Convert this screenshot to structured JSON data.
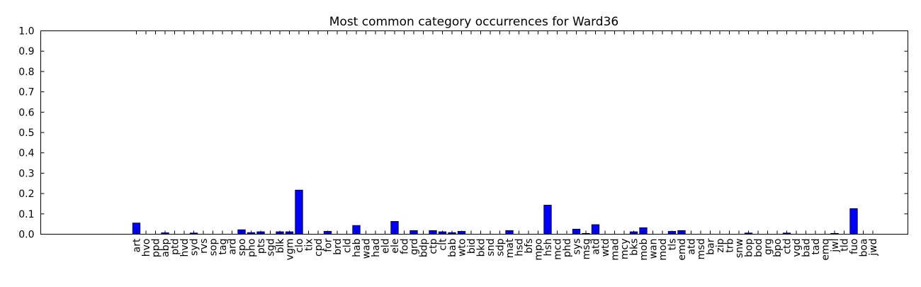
{
  "chart_data": {
    "type": "bar",
    "title": "Most common category occurrences for Ward36",
    "xlabel": "",
    "ylabel": "",
    "ylim": [
      0,
      1.0
    ],
    "yticks": [
      "0.0",
      "0.1",
      "0.2",
      "0.3",
      "0.4",
      "0.5",
      "0.6",
      "0.7",
      "0.8",
      "0.9",
      "1.0"
    ],
    "grid": false,
    "bar_color": "#0000ff",
    "edge_color": "#000000",
    "categories": [
      "art",
      "hvo",
      "ppd",
      "abp",
      "ptd",
      "hvd",
      "syd",
      "rvs",
      "sop",
      "tag",
      "ard",
      "spo",
      "pho",
      "pts",
      "sgd",
      "blk",
      "vgm",
      "clo",
      "tix",
      "cpd",
      "for",
      "brd",
      "cld",
      "hab",
      "wad",
      "had",
      "eld",
      "ele",
      "fod",
      "grd",
      "bdp",
      "ctp",
      "clt",
      "bab",
      "wto",
      "bid",
      "bkd",
      "snd",
      "sdp",
      "mat",
      "hsd",
      "bfs",
      "mpo",
      "hsh",
      "mcd",
      "phd",
      "sys",
      "msg",
      "atd",
      "wtd",
      "mad",
      "mcy",
      "bks",
      "mob",
      "wan",
      "mod",
      "tls",
      "emd",
      "atd",
      "msd",
      "bar",
      "zip",
      "trb",
      "snw",
      "bop",
      "bod",
      "grg",
      "bpo",
      "ctd",
      "vgd",
      "bad",
      "tad",
      "emq",
      "jwl",
      "tld",
      "fuo",
      "boa",
      "jwd"
    ],
    "values": [
      0.055,
      0.0,
      0.0,
      0.007,
      0.0,
      0.0,
      0.006,
      0.0,
      0.0,
      0.0,
      0.0,
      0.022,
      0.008,
      0.012,
      0.0,
      0.012,
      0.012,
      0.217,
      0.0,
      0.0,
      0.014,
      0.0,
      0.0,
      0.043,
      0.0,
      0.0,
      0.0,
      0.063,
      0.0,
      0.018,
      0.0,
      0.018,
      0.012,
      0.008,
      0.014,
      0.0,
      0.0,
      0.0,
      0.0,
      0.018,
      0.0,
      0.0,
      0.0,
      0.143,
      0.0,
      0.0,
      0.025,
      0.004,
      0.047,
      0.0,
      0.0,
      0.0,
      0.012,
      0.032,
      0.0,
      0.0,
      0.014,
      0.018,
      0.0,
      0.0,
      0.0,
      0.0,
      0.0,
      0.0,
      0.006,
      0.0,
      0.0,
      0.0,
      0.006,
      0.0,
      0.0,
      0.0,
      0.0,
      0.004,
      0.0,
      0.126,
      0.0,
      0.0
    ]
  }
}
